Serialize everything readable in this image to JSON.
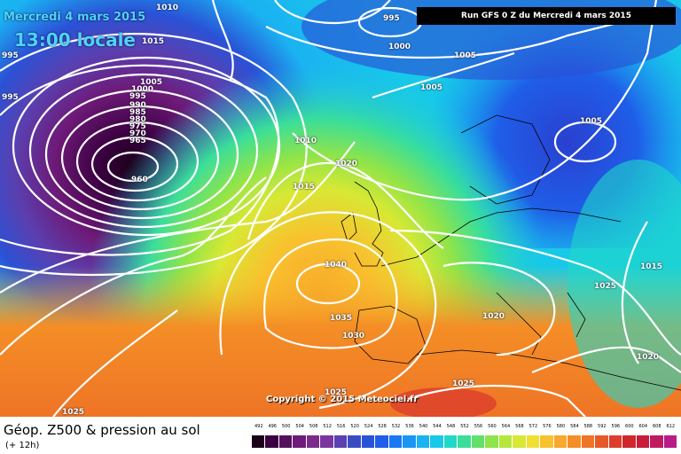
{
  "overlay": {
    "date": "Mercredi 4 mars 2015",
    "time": "13:00 locale",
    "run": "Run GFS 0 Z du Mercredi 4 mars 2015",
    "copyright": "Copyright © 2015 Meteociel.fr"
  },
  "footer": {
    "title": "Géop. Z500 & pression au sol",
    "subtitle": "(+ 12h)"
  },
  "legend": {
    "values": [
      "492",
      "496",
      "500",
      "504",
      "508",
      "512",
      "516",
      "520",
      "524",
      "528",
      "532",
      "536",
      "540",
      "544",
      "548",
      "552",
      "556",
      "560",
      "564",
      "568",
      "572",
      "576",
      "580",
      "584",
      "588",
      "592",
      "596",
      "600",
      "604",
      "608",
      "612"
    ],
    "colors": [
      "#1a0018",
      "#3a0040",
      "#55105c",
      "#6e1a78",
      "#7a2a8a",
      "#7a35a0",
      "#5a40b0",
      "#3a4cc4",
      "#2a52d6",
      "#1f5ee8",
      "#1a78f4",
      "#1a95f6",
      "#1ab2f2",
      "#18c8e8",
      "#20d8c8",
      "#3ade9a",
      "#62e06a",
      "#8ee44a",
      "#b6e63a",
      "#d8e834",
      "#f0e032",
      "#f8c22e",
      "#f8a82a",
      "#f48e26",
      "#ee7426",
      "#e65a28",
      "#dc3e2c",
      "#d0262e",
      "#c81c3a",
      "#c01a60",
      "#b81a88"
    ]
  },
  "isobars": [
    {
      "text": "1010",
      "id": "iso-1010-top"
    },
    {
      "text": "1015",
      "id": "iso-1015-nw"
    },
    {
      "text": "995",
      "id": "iso-995-a"
    },
    {
      "text": "995",
      "id": "iso-995-b"
    },
    {
      "text": "1005",
      "id": "iso-1005-west"
    },
    {
      "text": "1000",
      "id": "iso-1000"
    },
    {
      "text": "995",
      "id": "iso-995-c"
    },
    {
      "text": "990",
      "id": "iso-990"
    },
    {
      "text": "985",
      "id": "iso-985"
    },
    {
      "text": "980",
      "id": "iso-980"
    },
    {
      "text": "975",
      "id": "iso-975"
    },
    {
      "text": "970",
      "id": "iso-970"
    },
    {
      "text": "965",
      "id": "iso-965"
    },
    {
      "text": "960",
      "id": "iso-960"
    },
    {
      "text": "995",
      "id": "iso-995-north"
    },
    {
      "text": "1000",
      "id": "iso-1000-north"
    },
    {
      "text": "1005",
      "id": "iso-1005-ne"
    },
    {
      "text": "1005",
      "id": "iso-1005-n"
    },
    {
      "text": "1005",
      "id": "iso-1005-scand"
    },
    {
      "text": "1010",
      "id": "iso-1010-mid"
    },
    {
      "text": "1020",
      "id": "iso-1020-north"
    },
    {
      "text": "1015",
      "id": "iso-1015-mid"
    },
    {
      "text": "1040",
      "id": "iso-1040"
    },
    {
      "text": "1035",
      "id": "iso-1035"
    },
    {
      "text": "1030",
      "id": "iso-1030"
    },
    {
      "text": "1020",
      "id": "iso-1020-east"
    },
    {
      "text": "1025",
      "id": "iso-1025-east"
    },
    {
      "text": "1015",
      "id": "iso-1015-east"
    },
    {
      "text": "1020",
      "id": "iso-1020-se"
    },
    {
      "text": "1025",
      "id": "iso-1025-africa"
    },
    {
      "text": "1025",
      "id": "iso-1025-sw"
    },
    {
      "text": "1025",
      "id": "iso-1025-south"
    }
  ]
}
